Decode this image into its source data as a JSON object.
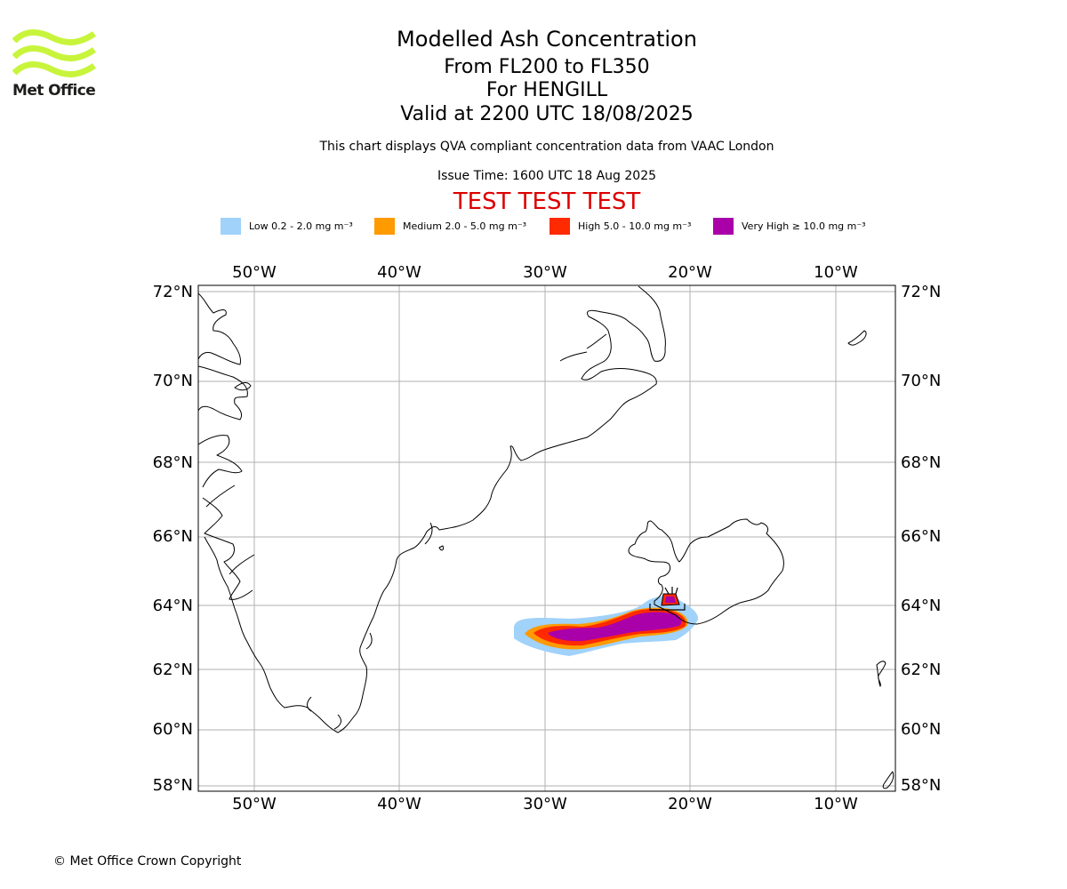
{
  "branding": {
    "logo_text": "Met Office",
    "logo_color": "#c8f53c"
  },
  "titles": {
    "main": "Modelled Ash Concentration",
    "levels": "From FL200 to FL350",
    "volcano": "For HENGILL",
    "valid": "Valid at 2200 UTC 18/08/2025",
    "source_note": "This chart displays QVA compliant concentration data from VAAC London",
    "issue_time": "Issue Time: 1600 UTC 18 Aug 2025",
    "test_banner": "TEST TEST TEST",
    "test_banner_color": "#dd0000"
  },
  "legend": [
    {
      "label": "Low 0.2 - 2.0 mg m⁻³",
      "color": "#a0d2fa"
    },
    {
      "label": "Medium 2.0 - 5.0 mg m⁻³",
      "color": "#ff9a00"
    },
    {
      "label": "High 5.0 - 10.0 mg m⁻³",
      "color": "#ff2a00"
    },
    {
      "label": "Very High ≥ 10.0 mg m⁻³",
      "color": "#aa00aa"
    }
  ],
  "map": {
    "top_lon_labels": [
      "50°W",
      "40°W",
      "30°W",
      "20°W",
      "10°W"
    ],
    "bottom_lon_labels": [
      "50°W",
      "40°W",
      "30°W",
      "20°W",
      "10°W"
    ],
    "left_lat_labels": [
      "72°N",
      "70°N",
      "68°N",
      "66°N",
      "64°N",
      "62°N",
      "60°N",
      "58°N"
    ],
    "right_lat_labels": [
      "72°N",
      "70°N",
      "68°N",
      "66°N",
      "64°N",
      "62°N",
      "60°N",
      "58°N"
    ],
    "grid_color": "#b0b0b0",
    "coastline_color": "#000000"
  },
  "footer": {
    "copyright": "© Met Office Crown Copyright"
  }
}
